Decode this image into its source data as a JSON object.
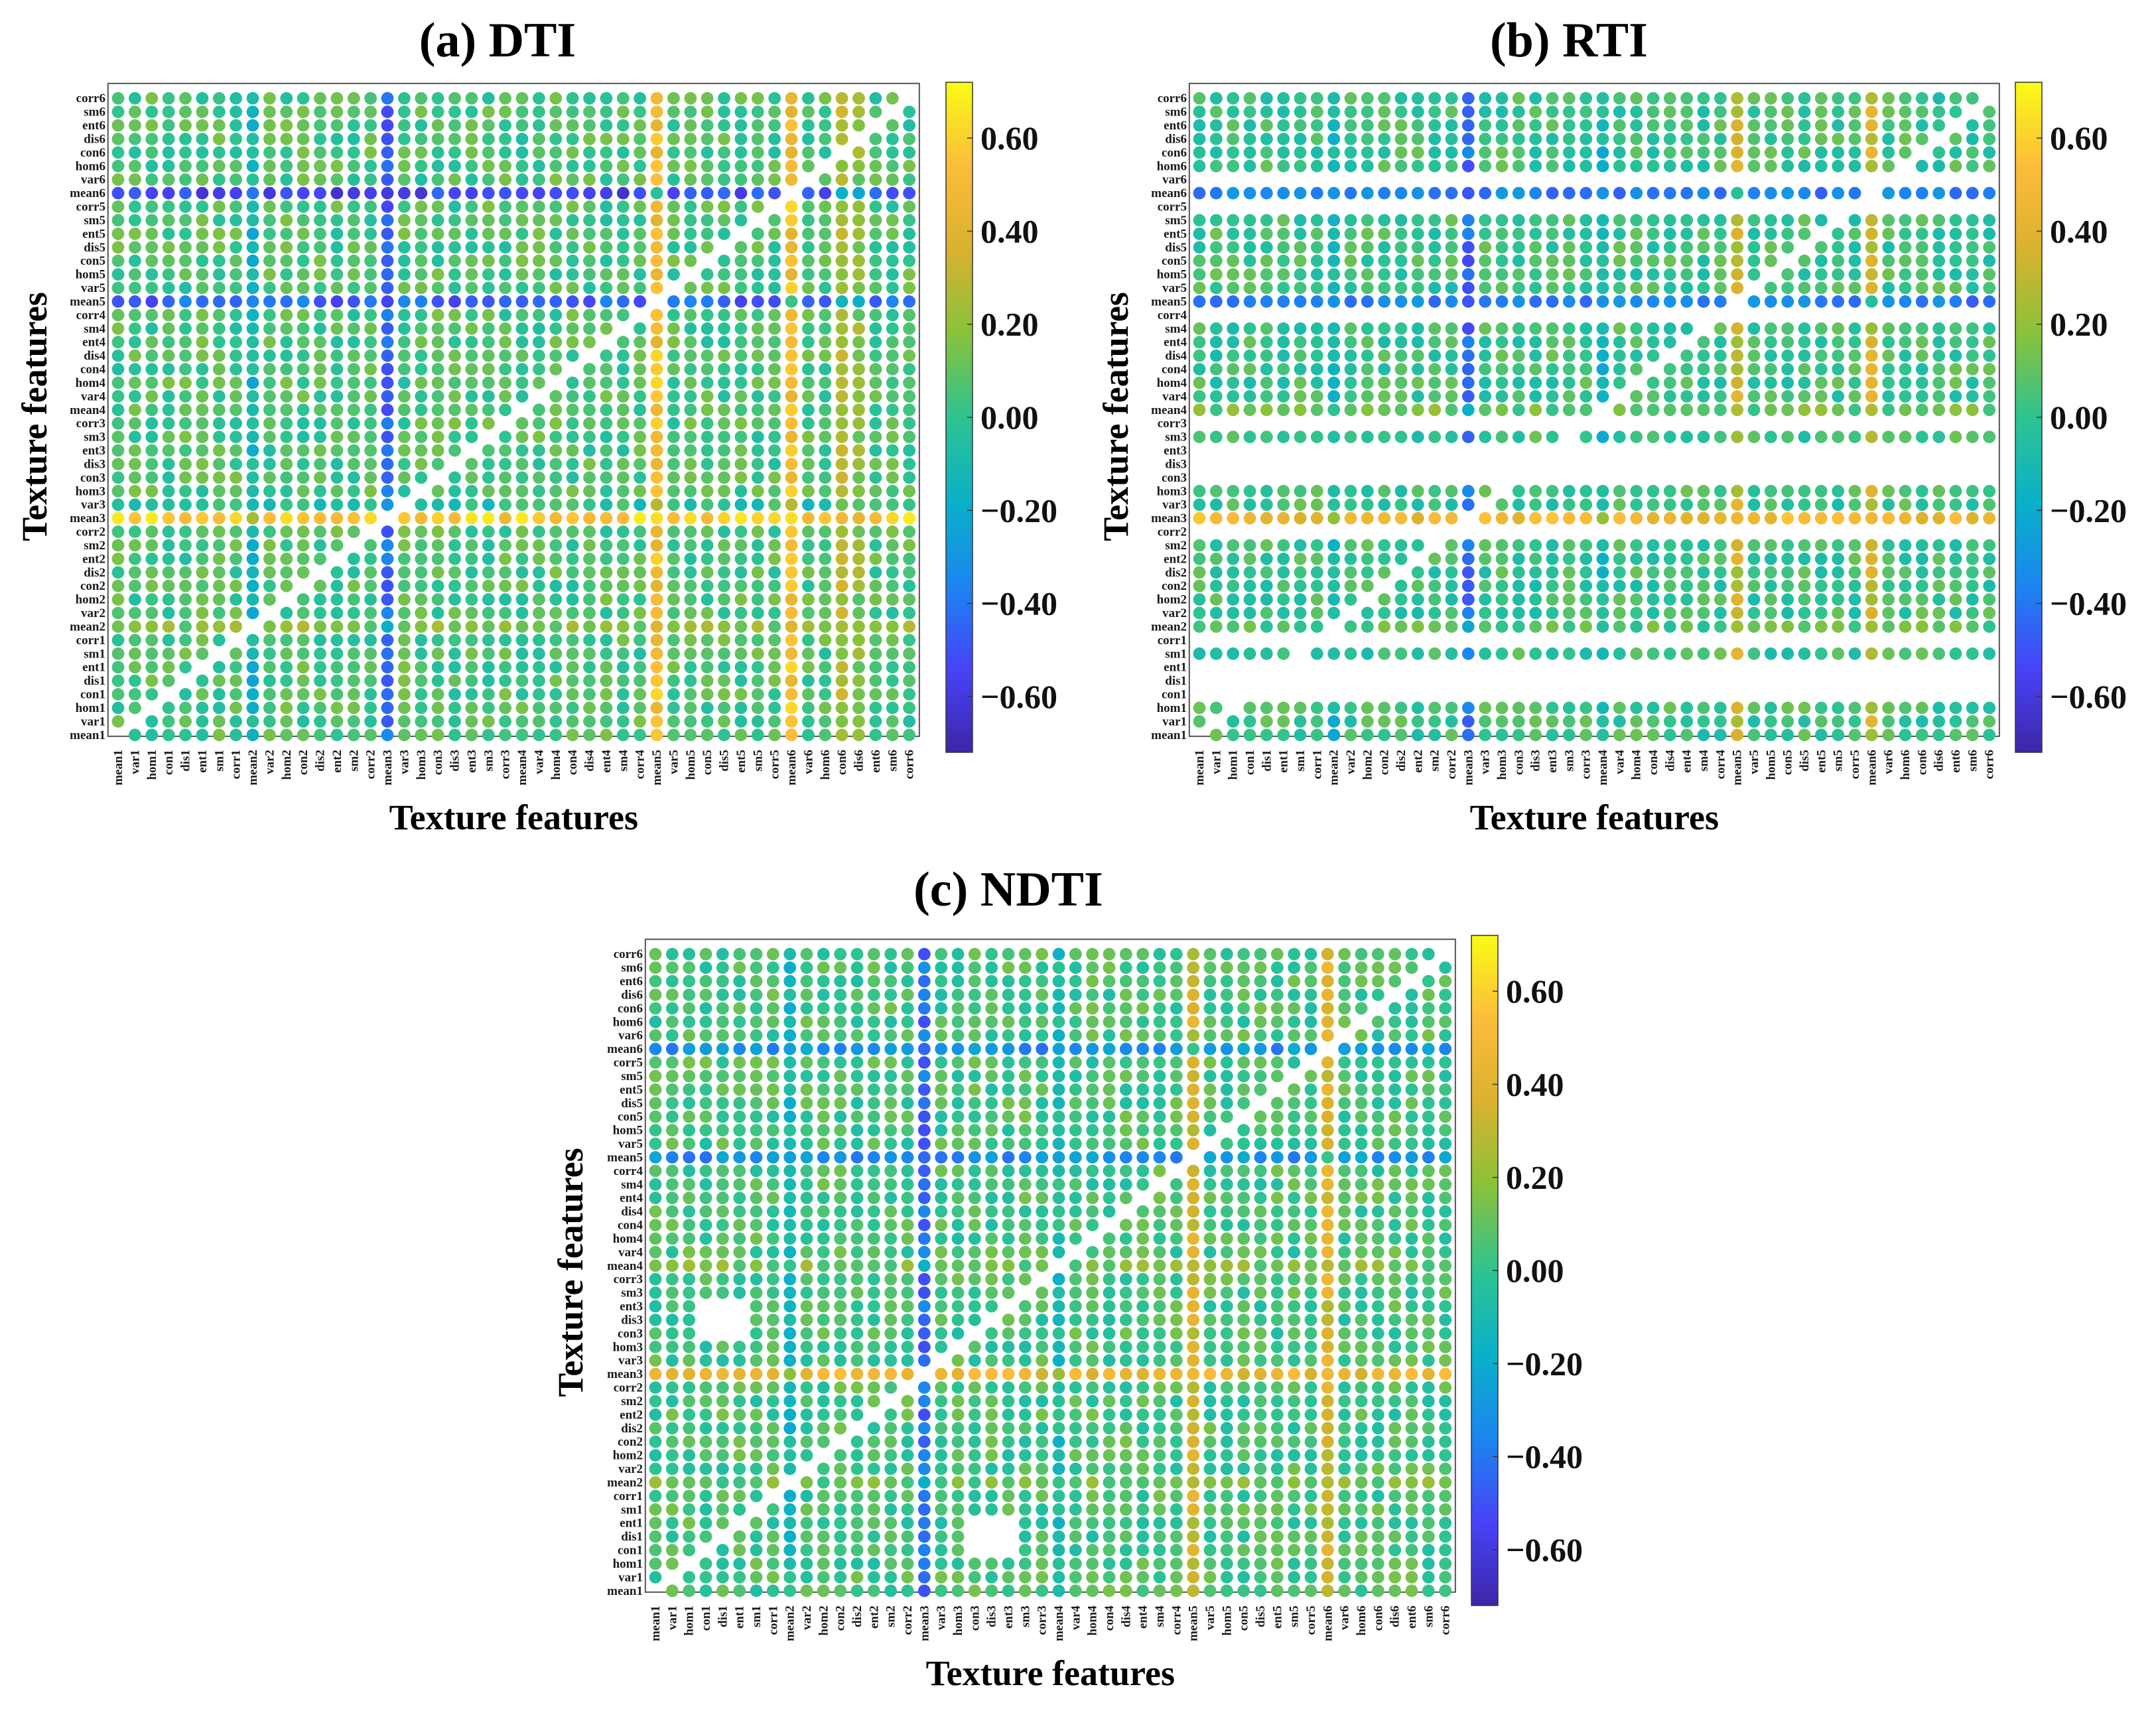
{
  "features": [
    "mean1",
    "var1",
    "hom1",
    "con1",
    "dis1",
    "ent1",
    "sm1",
    "corr1",
    "mean2",
    "var2",
    "hom2",
    "con2",
    "dis2",
    "ent2",
    "sm2",
    "corr2",
    "mean3",
    "var3",
    "hom3",
    "con3",
    "dis3",
    "ent3",
    "sm3",
    "corr3",
    "mean4",
    "var4",
    "hom4",
    "con4",
    "dis4",
    "ent4",
    "sm4",
    "corr4",
    "mean5",
    "var5",
    "hom5",
    "con5",
    "dis5",
    "ent5",
    "sm5",
    "corr5",
    "mean6",
    "var6",
    "hom6",
    "con6",
    "dis6",
    "ent6",
    "sm6",
    "corr6"
  ],
  "colormap": [
    "#3e26a8",
    "#4743f8",
    "#1b86f0",
    "#09b1c8",
    "#2ec391",
    "#89c23a",
    "#d9b22e",
    "#fcbc3a",
    "#f9fb15"
  ],
  "colorbar": {
    "min": -0.72,
    "max": 0.72,
    "ticks": [
      0.6,
      0.4,
      0.2,
      0.0,
      -0.2,
      -0.4,
      -0.6
    ],
    "tick_labels": [
      "0.60",
      "0.40",
      "0.20",
      "0.00",
      "−0.20",
      "−0.40",
      "−0.60"
    ]
  },
  "chart_data": [
    {
      "type": "heatmap",
      "title": "(a)  DTI",
      "xlabel": "Texture features",
      "ylabel": "Texture features",
      "base": 0.05,
      "row_effect": {
        "mean3": 0.52,
        "mean5": -0.5,
        "mean6": -0.58,
        "mean2": 0.12,
        "var3": -0.08
      },
      "col_effect": {
        "mean3": -0.5,
        "mean5": 0.46,
        "mean6": 0.46,
        "mean2": -0.18,
        "con6": 0.2,
        "dis6": 0.12
      },
      "masked_cells": []
    },
    {
      "type": "heatmap",
      "title": "(b)  RTI",
      "xlabel": "Texture features",
      "ylabel": "Texture features",
      "base": 0.02,
      "row_effect": {
        "mean3": 0.45,
        "mean4": 0.1,
        "mean2": 0.05,
        "mean5": -0.4,
        "mean6": -0.4
      },
      "col_effect": {
        "mean3": -0.45,
        "mean5": 0.3,
        "mean6": 0.3,
        "mean2": -0.15,
        "mean4": -0.15
      },
      "masked_rows": [
        "corr1",
        "ent1",
        "dis1",
        "con1",
        "corr2",
        "con3",
        "dis3",
        "ent3",
        "corr3",
        "corr4",
        "corr5",
        "var6"
      ],
      "masked_cells": []
    },
    {
      "type": "heatmap",
      "title": "(c)  NDTI",
      "xlabel": "Texture features",
      "ylabel": "Texture features",
      "base": 0.04,
      "row_effect": {
        "mean3": 0.4,
        "mean4": 0.1,
        "mean5": -0.35,
        "mean6": -0.35,
        "mean2": 0.08
      },
      "col_effect": {
        "mean3": -0.45,
        "mean5": 0.3,
        "mean6": 0.32,
        "mean2": -0.15,
        "mean4": -0.12
      },
      "masked_blocks": [
        [
          [
            "con3",
            "dis3",
            "ent3"
          ],
          [
            "con1",
            "dis1",
            "ent1"
          ]
        ],
        [
          [
            "con1",
            "dis1",
            "ent1"
          ],
          [
            "con3",
            "dis3",
            "ent3"
          ]
        ]
      ],
      "masked_cells": []
    }
  ]
}
